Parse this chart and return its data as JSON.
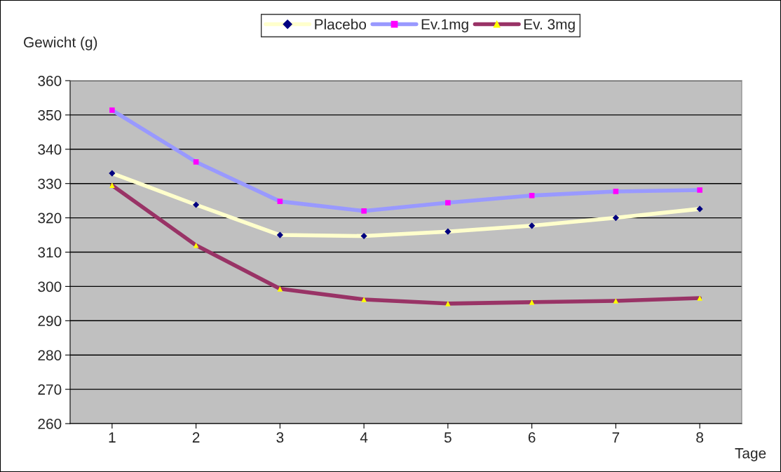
{
  "chart_data": {
    "type": "line",
    "ylabel": "Gewicht (g)",
    "xlabel": "Tage",
    "categories": [
      "1",
      "2",
      "3",
      "4",
      "5",
      "6",
      "7",
      "8"
    ],
    "series": [
      {
        "name": "Placebo",
        "color": "#ffffcc",
        "marker": "diamond",
        "colors": [
          "#000080",
          "#000080",
          "#000080",
          "#000080",
          "#000080",
          "#000080",
          "#000080",
          "#000080"
        ],
        "values": [
          333,
          323.8,
          315,
          314.7,
          316,
          317.7,
          320,
          322.6
        ]
      },
      {
        "name": "Ev.1mg",
        "color": "#9999ff",
        "marker": "square",
        "colors": [
          "#ff00ff",
          "#ff00ff",
          "#ff00ff",
          "#ff00ff",
          "#ff00ff",
          "#ff00ff",
          "#ff00ff",
          "#ff00ff"
        ],
        "values": [
          351.4,
          336.3,
          324.8,
          322,
          324.4,
          326.5,
          327.7,
          328.1
        ]
      },
      {
        "name": "Ev. 3mg",
        "color": "#993366",
        "marker": "triangle",
        "colors": [
          "#ffff00",
          "#ffff00",
          "#ffff00",
          "#ffff00",
          "#ffff00",
          "#ffff00",
          "#ffff00",
          "#ffff00"
        ],
        "values": [
          329.5,
          312,
          299.3,
          296.2,
          295,
          295.4,
          295.8,
          296.6
        ]
      }
    ],
    "ylim": [
      260,
      360
    ],
    "yticks": [
      260,
      270,
      280,
      290,
      300,
      310,
      320,
      330,
      340,
      350,
      360
    ],
    "grid": "y",
    "legend": "top",
    "line_style": "solid"
  }
}
